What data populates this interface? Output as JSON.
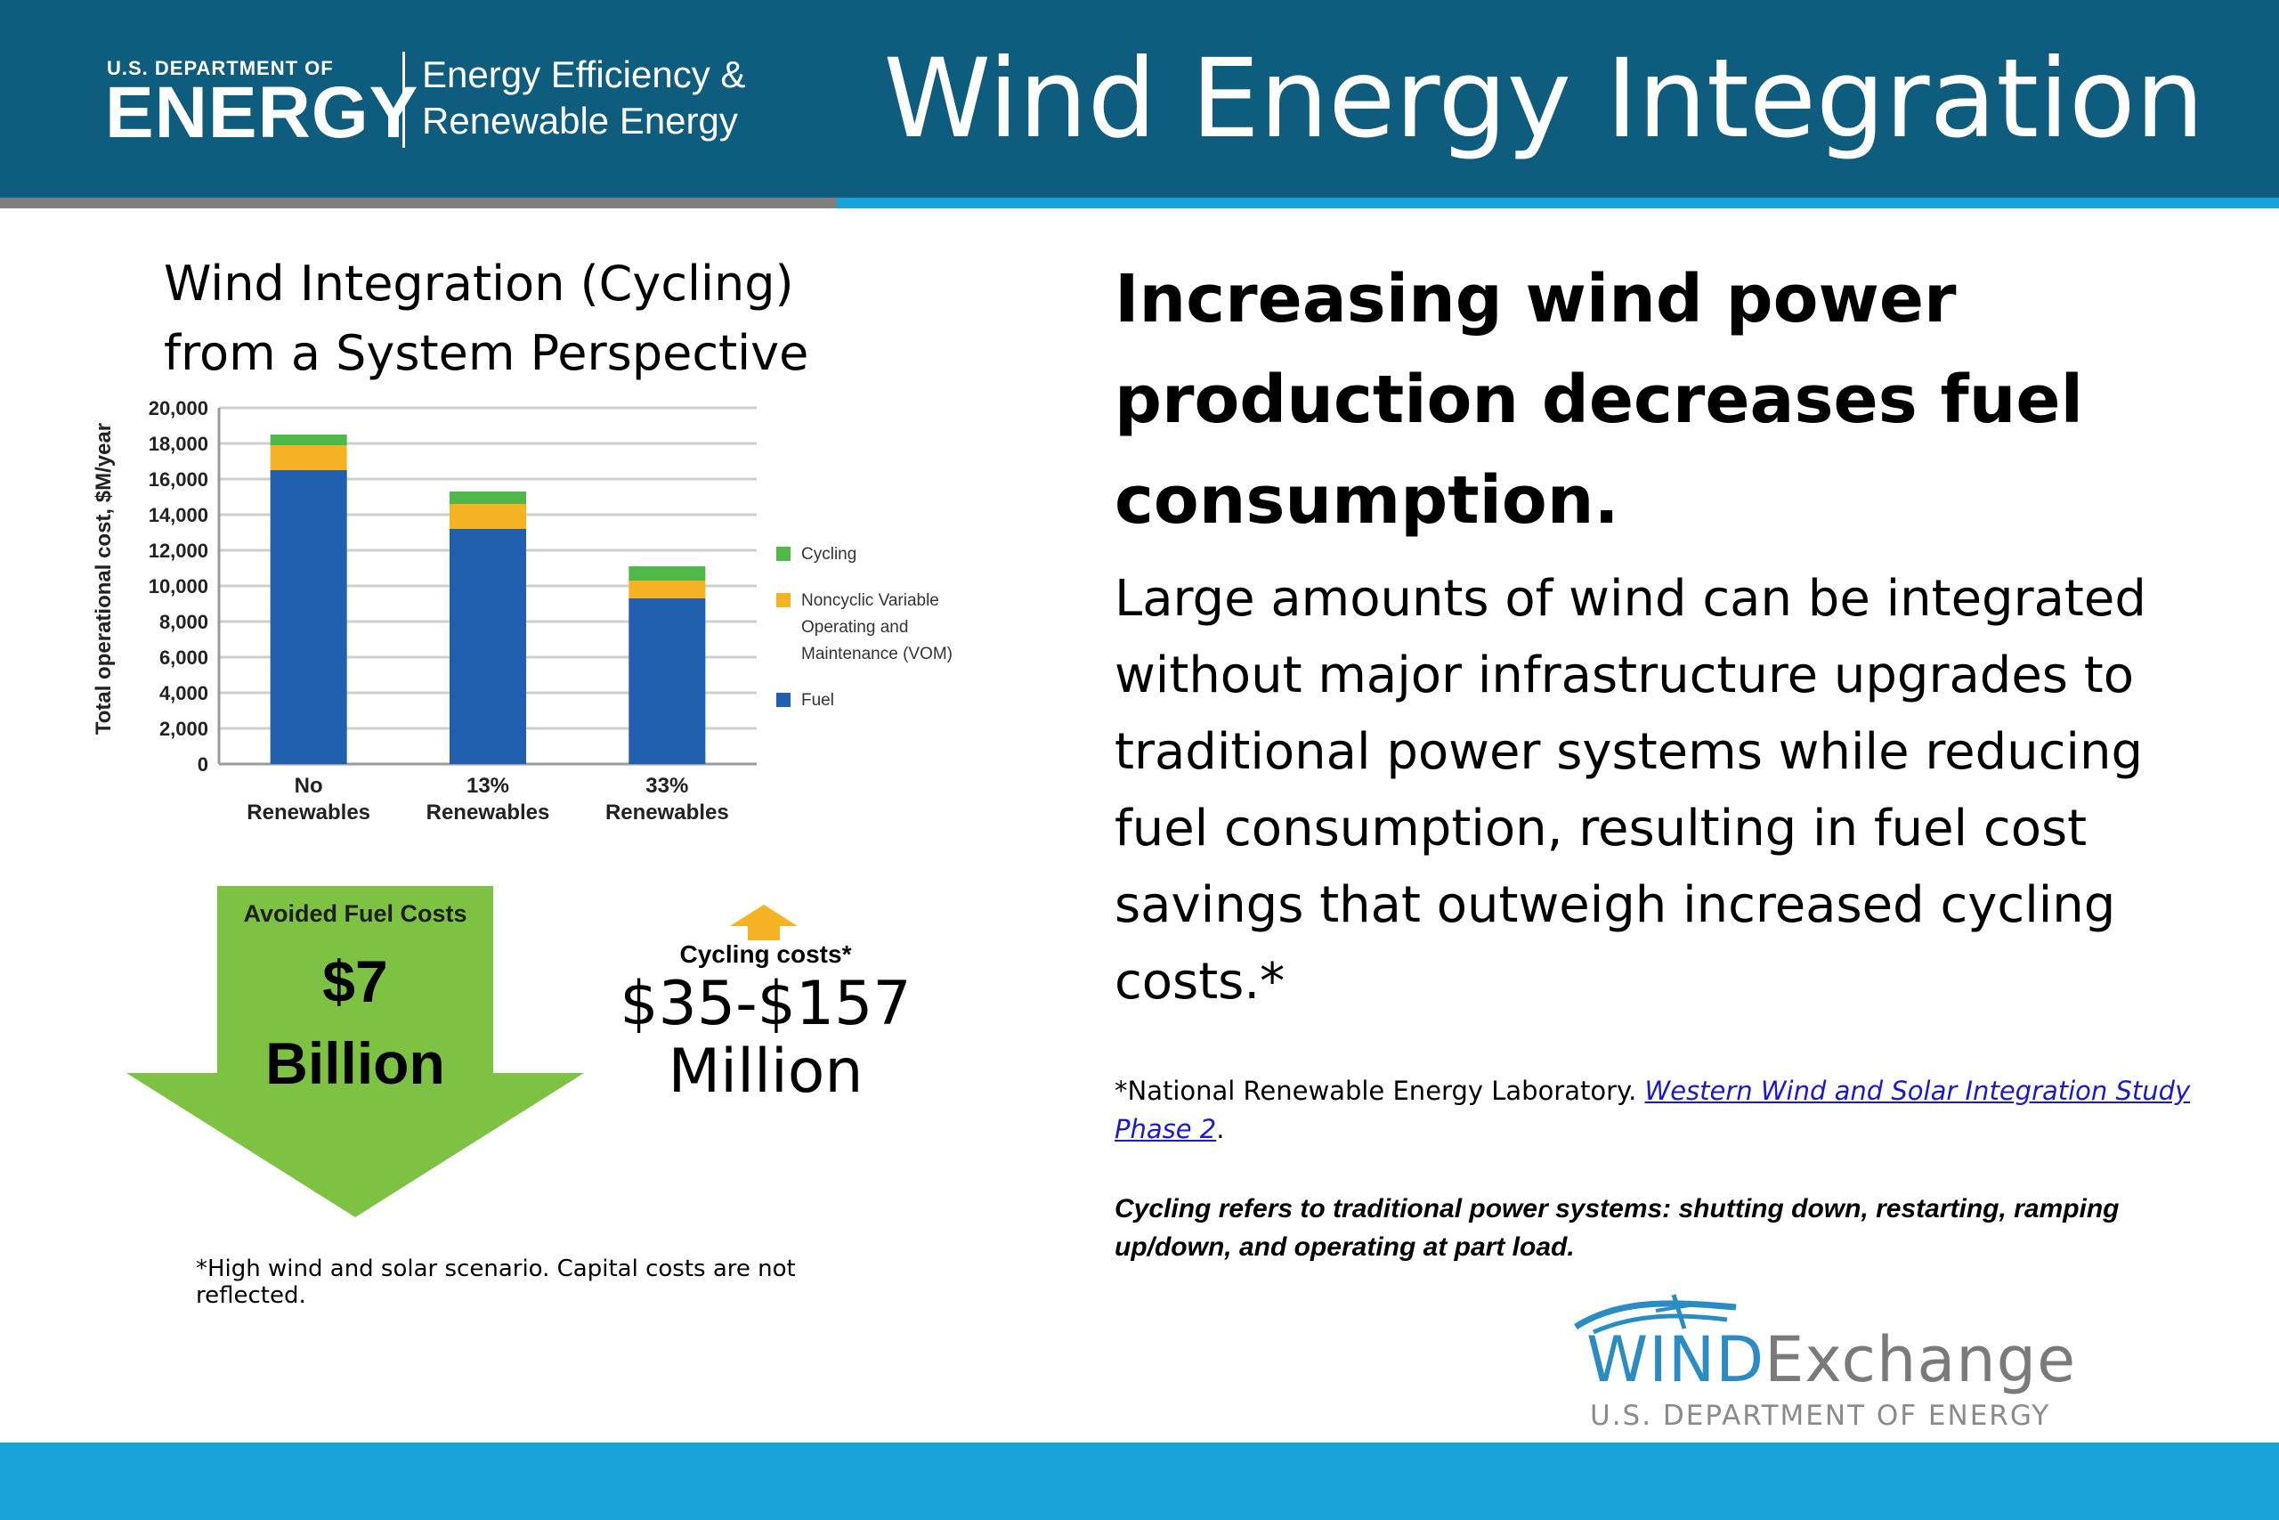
{
  "header": {
    "doe_small": "U.S. DEPARTMENT OF",
    "doe_big": "ENERGY",
    "eere_line1": "Energy Efficiency &",
    "eere_line2": "Renewable Energy",
    "title": "Wind Energy Integration"
  },
  "chart_data": {
    "type": "bar",
    "stacked": true,
    "title": "Wind Integration (Cycling) from a System Perspective",
    "ylabel": "Total operational cost, $M/year",
    "xlabel": "",
    "ylim": [
      0,
      20000
    ],
    "yticks": [
      "20,000",
      "18,000",
      "16,000",
      "14,000",
      "12,000",
      "10,000",
      "8,000",
      "6,000",
      "4,000",
      "2,000",
      "0"
    ],
    "ytick_values": [
      20000,
      18000,
      16000,
      14000,
      12000,
      10000,
      8000,
      6000,
      4000,
      2000,
      0
    ],
    "categories": [
      [
        "No",
        "Renewables"
      ],
      [
        "13%",
        "Renewables"
      ],
      [
        "33%",
        "Renewables"
      ]
    ],
    "series": [
      {
        "name": "Fuel",
        "color": "#1f5fae",
        "values": [
          16500,
          13200,
          9300
        ]
      },
      {
        "name": "Noncyclic Variable Operating and Maintenance (VOM)",
        "legend_lines": [
          "Noncyclic Variable",
          "Operating and",
          "Maintenance (VOM)"
        ],
        "color": "#f5b323",
        "values": [
          1400,
          1400,
          1000
        ]
      },
      {
        "name": "Cycling",
        "color": "#4fb848",
        "values": [
          600,
          700,
          800
        ]
      }
    ],
    "legend_order": [
      "Cycling",
      "Noncyclic Variable Operating and Maintenance (VOM)",
      "Fuel"
    ],
    "legend_position": "right",
    "grid": true
  },
  "avoided": {
    "label": "Avoided Fuel Costs",
    "value_line1": "$7",
    "value_line2": "Billion",
    "color": "#7dc242"
  },
  "cycling_costs": {
    "label": "Cycling costs*",
    "value_line1": "$35-$157",
    "value_line2": "Million",
    "arrow_color": "#f5b323"
  },
  "left_footnote": "*High wind and solar scenario. Capital costs are not reflected.",
  "right": {
    "heading": "Increasing wind power production decreases fuel consumption.",
    "body": "Large amounts of wind can be integrated without major infrastructure upgrades to traditional power systems while reducing fuel consumption, resulting in fuel cost savings that outweigh increased cycling costs.*",
    "citation_prefix": "*National Renewable Energy Laboratory. ",
    "citation_link": "Western Wind and Solar Integration Study Phase 2",
    "citation_suffix": ".",
    "note": "Cycling refers to traditional power systems: shutting down, restarting, ramping up/down, and operating at part load."
  },
  "logo": {
    "wind": "WIND",
    "exchange": "Exchange",
    "sub": "U.S. DEPARTMENT OF ENERGY"
  },
  "colors": {
    "header_bg": "#0f5d7e",
    "accent_blue": "#1aa3d9",
    "stripe_gray": "#7f7f7f"
  }
}
